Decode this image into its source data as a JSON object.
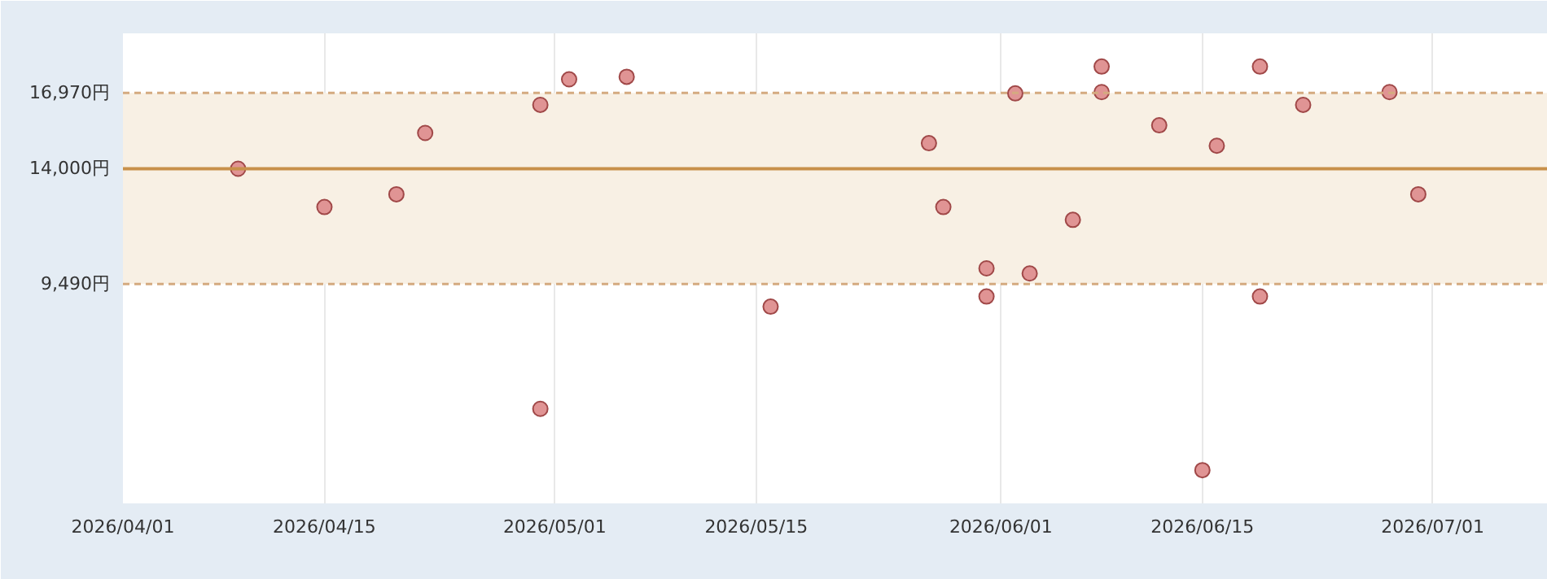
{
  "chart_data": {
    "type": "scatter",
    "x": [
      "2026-04-09",
      "2026-04-15",
      "2026-04-20",
      "2026-04-22",
      "2026-04-30",
      "2026-04-30",
      "2026-05-02",
      "2026-05-06",
      "2026-05-16",
      "2026-05-27",
      "2026-05-28",
      "2026-05-31",
      "2026-05-31",
      "2026-06-02",
      "2026-06-03",
      "2026-06-06",
      "2026-06-08",
      "2026-06-08",
      "2026-06-12",
      "2026-06-15",
      "2026-06-16",
      "2026-06-19",
      "2026-06-19",
      "2026-06-22",
      "2026-06-28",
      "2026-06-30"
    ],
    "series": [
      {
        "color": "#e09494",
        "values": [
          14000,
          12500,
          13000,
          15400,
          4600,
          16500,
          17500,
          17600,
          8600,
          15000,
          12500,
          10100,
          9000,
          16950,
          9900,
          12000,
          17000,
          18000,
          15700,
          2200,
          14900,
          18000,
          9000,
          16500,
          17000,
          13000
        ]
      }
    ],
    "marker": "circle",
    "xlim": [
      "2026-04-01",
      "2026-07-09"
    ],
    "xticks": [
      {
        "value": "2026-04-01",
        "label": "2026/04/01"
      },
      {
        "value": "2026-04-15",
        "label": "2026/04/15"
      },
      {
        "value": "2026-05-01",
        "label": "2026/05/01"
      },
      {
        "value": "2026-05-15",
        "label": "2026/05/15"
      },
      {
        "value": "2026-06-01",
        "label": "2026/06/01"
      },
      {
        "value": "2026-06-15",
        "label": "2026/06/15"
      },
      {
        "value": "2026-07-01",
        "label": "2026/07/01"
      }
    ],
    "ylim": [
      900,
      19300
    ],
    "yticks": [
      {
        "value": 9490,
        "label": "9,490円"
      },
      {
        "value": 14000,
        "label": "14,000円"
      },
      {
        "value": 16970,
        "label": "16,970円"
      }
    ],
    "grid": "x",
    "bands": [
      {
        "axis": "y",
        "from": 9490,
        "to": 16970,
        "color": "#f8f0e4"
      }
    ],
    "ref_lines": [
      {
        "axis": "y",
        "value": 14000,
        "color": "#c8904a",
        "line_style": "solid"
      },
      {
        "axis": "y",
        "value": 9490,
        "color": "#d4aa80",
        "line_style": "dashed"
      },
      {
        "axis": "y",
        "value": 16970,
        "color": "#d4aa80",
        "line_style": "dashed"
      }
    ]
  }
}
